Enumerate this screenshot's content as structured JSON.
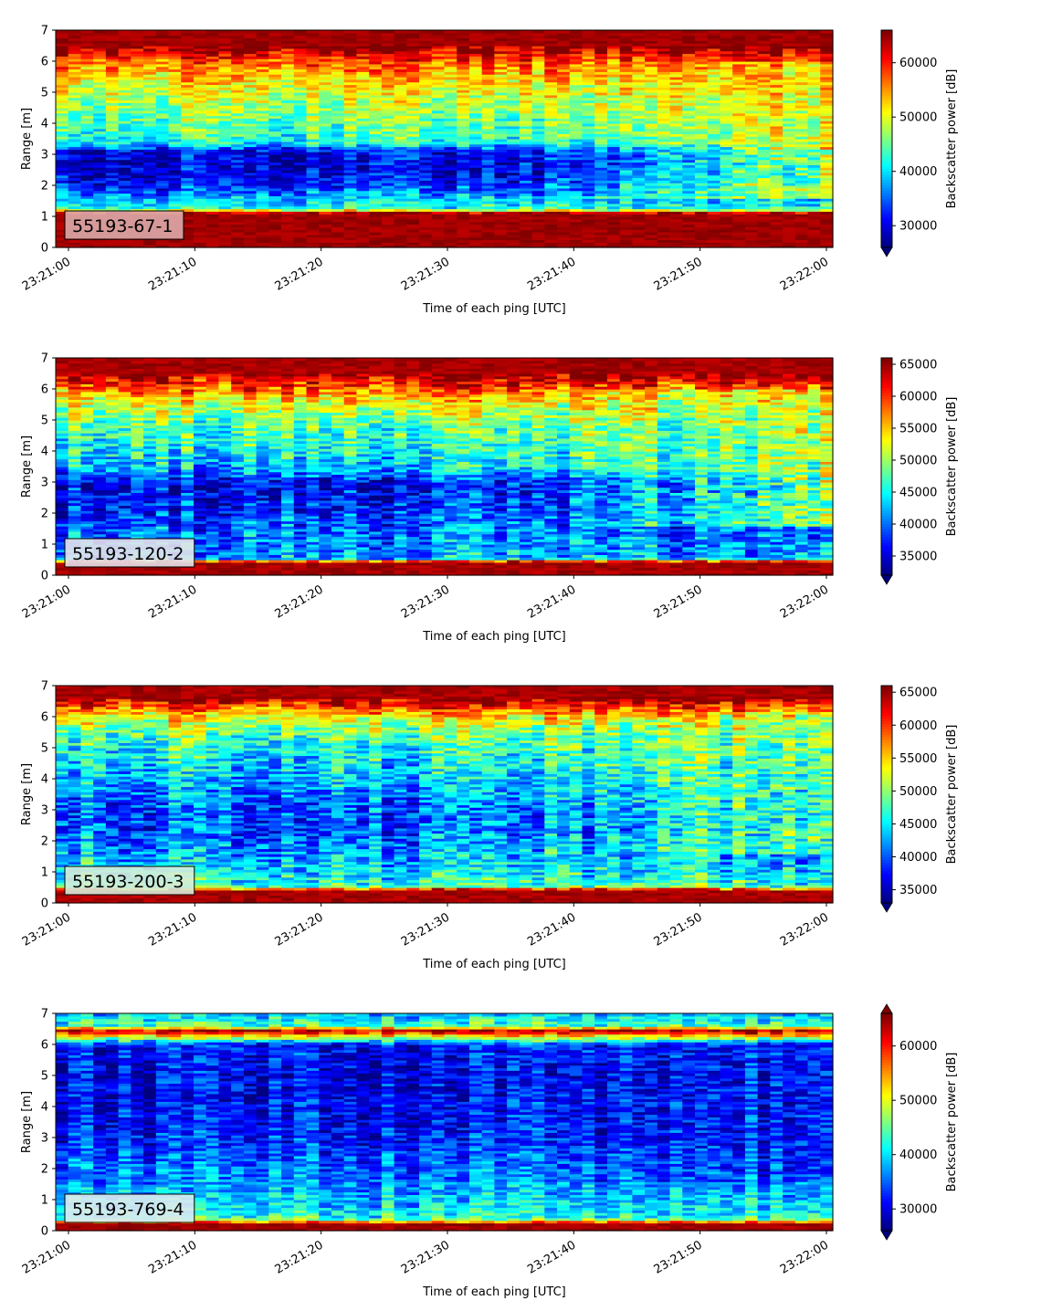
{
  "chart_data": [
    {
      "type": "heatmap",
      "label": "55193-67-1",
      "label_box_color": "#dcaaaa",
      "xlabel": "Time of each ping [UTC]",
      "ylabel": "Range [m]",
      "xticks": [
        "23:21:00",
        "23:21:10",
        "23:21:20",
        "23:21:30",
        "23:21:40",
        "23:21:50",
        "23:22:00"
      ],
      "yticks": [
        "0",
        "1",
        "2",
        "3",
        "4",
        "5",
        "6",
        "7"
      ],
      "ylim": [
        0,
        7
      ],
      "colorbar_label": "Backscatter power [dB]",
      "colorbar_ticks": [
        "30000",
        "40000",
        "50000",
        "60000"
      ],
      "colorbar_range": [
        26000,
        66000
      ],
      "colorbar_extend": "min",
      "colormap": "jet",
      "profile": [
        {
          "r": 0.0,
          "v": 66000
        },
        {
          "r": 1.1,
          "v": 66000
        },
        {
          "r": 1.25,
          "v": 43000
        },
        {
          "r": 1.6,
          "v": 38500
        },
        {
          "r": 1.9,
          "v": 34000
        },
        {
          "r": 2.3,
          "v": 31000
        },
        {
          "r": 2.7,
          "v": 30000
        },
        {
          "r": 3.1,
          "v": 31000
        },
        {
          "r": 3.4,
          "v": 42000
        },
        {
          "r": 4.0,
          "v": 45000
        },
        {
          "r": 4.6,
          "v": 47500
        },
        {
          "r": 5.1,
          "v": 50500
        },
        {
          "r": 5.6,
          "v": 54000
        },
        {
          "r": 6.0,
          "v": 58000
        },
        {
          "r": 6.3,
          "v": 63000
        },
        {
          "r": 6.55,
          "v": 66000
        },
        {
          "r": 7.0,
          "v": 66000
        }
      ],
      "late_value": 52000
    },
    {
      "type": "heatmap",
      "label": "55193-120-2",
      "label_box_color": "#e4e2ea",
      "xlabel": "Time of each ping [UTC]",
      "ylabel": "Range [m]",
      "xticks": [
        "23:21:00",
        "23:21:10",
        "23:21:20",
        "23:21:30",
        "23:21:40",
        "23:21:50",
        "23:22:00"
      ],
      "yticks": [
        "0",
        "1",
        "2",
        "3",
        "4",
        "5",
        "6",
        "7"
      ],
      "ylim": [
        0,
        7
      ],
      "colorbar_label": "Backscatter power [dB]",
      "colorbar_ticks": [
        "35000",
        "40000",
        "45000",
        "50000",
        "55000",
        "60000",
        "65000"
      ],
      "colorbar_range": [
        32000,
        66000
      ],
      "colorbar_extend": "min",
      "colormap": "jet",
      "profile": [
        {
          "r": 0.0,
          "v": 66000
        },
        {
          "r": 0.42,
          "v": 66000
        },
        {
          "r": 0.55,
          "v": 42000
        },
        {
          "r": 0.9,
          "v": 41000
        },
        {
          "r": 1.5,
          "v": 40000
        },
        {
          "r": 2.2,
          "v": 37500
        },
        {
          "r": 3.0,
          "v": 36000
        },
        {
          "r": 3.4,
          "v": 42500
        },
        {
          "r": 4.0,
          "v": 45000
        },
        {
          "r": 4.8,
          "v": 47500
        },
        {
          "r": 5.4,
          "v": 51000
        },
        {
          "r": 5.9,
          "v": 57000
        },
        {
          "r": 6.3,
          "v": 62500
        },
        {
          "r": 6.55,
          "v": 66000
        },
        {
          "r": 7.0,
          "v": 66000
        }
      ],
      "late_value": 52000
    },
    {
      "type": "heatmap",
      "label": "55193-200-3",
      "label_box_color": "#d6ecd8",
      "xlabel": "Time of each ping [UTC]",
      "ylabel": "Range [m]",
      "xticks": [
        "23:21:00",
        "23:21:10",
        "23:21:20",
        "23:21:30",
        "23:21:40",
        "23:21:50",
        "23:22:00"
      ],
      "yticks": [
        "0",
        "1",
        "2",
        "3",
        "4",
        "5",
        "6",
        "7"
      ],
      "ylim": [
        0,
        7
      ],
      "colorbar_label": "Backscatter power [dB]",
      "colorbar_ticks": [
        "35000",
        "40000",
        "45000",
        "50000",
        "55000",
        "60000",
        "65000"
      ],
      "colorbar_range": [
        33000,
        66000
      ],
      "colorbar_extend": "min",
      "colormap": "jet",
      "profile": [
        {
          "r": 0.0,
          "v": 66000
        },
        {
          "r": 0.4,
          "v": 66000
        },
        {
          "r": 0.55,
          "v": 47500
        },
        {
          "r": 1.0,
          "v": 45000
        },
        {
          "r": 1.7,
          "v": 42500
        },
        {
          "r": 2.4,
          "v": 40000
        },
        {
          "r": 3.2,
          "v": 40500
        },
        {
          "r": 4.0,
          "v": 43500
        },
        {
          "r": 4.8,
          "v": 45500
        },
        {
          "r": 5.5,
          "v": 49000
        },
        {
          "r": 6.0,
          "v": 53500
        },
        {
          "r": 6.4,
          "v": 61000
        },
        {
          "r": 6.6,
          "v": 66000
        },
        {
          "r": 7.0,
          "v": 66000
        }
      ],
      "late_value": 51000
    },
    {
      "type": "heatmap",
      "label": "55193-769-4",
      "label_box_color": "#ddeaf0",
      "xlabel": "Time of each ping [UTC]",
      "ylabel": "Range [m]",
      "xticks": [
        "23:21:00",
        "23:21:10",
        "23:21:20",
        "23:21:30",
        "23:21:40",
        "23:21:50",
        "23:22:00"
      ],
      "yticks": [
        "0",
        "1",
        "2",
        "3",
        "4",
        "5",
        "6",
        "7"
      ],
      "ylim": [
        0,
        7
      ],
      "colorbar_label": "Backscatter power [dB]",
      "colorbar_ticks": [
        "30000",
        "40000",
        "50000",
        "60000"
      ],
      "colorbar_range": [
        26000,
        66000
      ],
      "colorbar_extend": "both",
      "colormap": "jet",
      "profile": [
        {
          "r": 0.0,
          "v": 66000
        },
        {
          "r": 0.22,
          "v": 66000
        },
        {
          "r": 0.3,
          "v": 55000
        },
        {
          "r": 0.4,
          "v": 42000
        },
        {
          "r": 1.0,
          "v": 38500
        },
        {
          "r": 2.0,
          "v": 35000
        },
        {
          "r": 3.0,
          "v": 32000
        },
        {
          "r": 4.0,
          "v": 31000
        },
        {
          "r": 5.0,
          "v": 30000
        },
        {
          "r": 6.0,
          "v": 31500
        },
        {
          "r": 6.25,
          "v": 50000
        },
        {
          "r": 6.45,
          "v": 64000
        },
        {
          "r": 6.6,
          "v": 44000
        },
        {
          "r": 7.0,
          "v": 38000
        }
      ],
      "late_value": 32000
    }
  ]
}
